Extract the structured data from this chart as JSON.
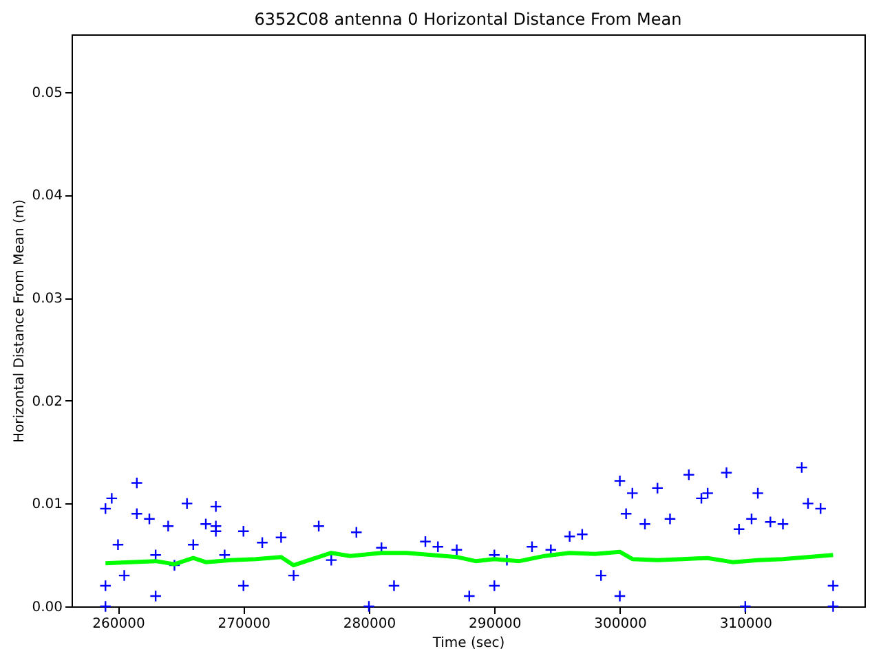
{
  "chart_data": {
    "type": "scatter",
    "title": "6352C08 antenna 0 Horizontal Distance From Mean",
    "xlabel": "Time (sec)",
    "ylabel": "Horizontal Distance From Mean (m)",
    "xlim": [
      256300,
      319500
    ],
    "xticks": [
      260000,
      270000,
      280000,
      290000,
      300000,
      310000
    ],
    "ylim": [
      0,
      0.0556
    ],
    "yticks": [
      {
        "value": 0,
        "label": "0.00"
      },
      {
        "value": 0.01,
        "label": "0.01"
      },
      {
        "value": 0.02,
        "label": "0.02"
      },
      {
        "value": 0.03,
        "label": "0.03"
      },
      {
        "value": 0.04,
        "label": "0.04"
      },
      {
        "value": 0.05,
        "label": "0.05"
      }
    ],
    "grid": false,
    "series": [
      {
        "color": "#0000ff",
        "marker": "cross",
        "x": [
          259000,
          259000,
          259000,
          259500,
          260000,
          260500,
          261500,
          261500,
          262500,
          263000,
          263000,
          264000,
          264500,
          265500,
          266000,
          267000,
          267800,
          267800,
          267800,
          268500,
          270000,
          270000,
          271500,
          273000,
          274000,
          276000,
          277000,
          279000,
          280000,
          281000,
          282000,
          284500,
          285500,
          287000,
          288000,
          290000,
          290000,
          291000,
          293000,
          294500,
          296000,
          297000,
          298500,
          300000,
          300000,
          300500,
          301000,
          302000,
          303000,
          304000,
          305500,
          306500,
          307000,
          308500,
          309500,
          310000,
          310500,
          311000,
          312000,
          313000,
          314500,
          315000,
          316000,
          317000,
          317000
        ],
        "values": [
          0.0095,
          0.002,
          0.0,
          0.0105,
          0.006,
          0.003,
          0.012,
          0.009,
          0.0085,
          0.005,
          0.001,
          0.0078,
          0.004,
          0.01,
          0.006,
          0.008,
          0.0097,
          0.0078,
          0.0073,
          0.005,
          0.0073,
          0.002,
          0.0062,
          0.0067,
          0.003,
          0.0078,
          0.0045,
          0.0072,
          0.0,
          0.0057,
          0.002,
          0.0063,
          0.0058,
          0.0055,
          0.001,
          0.005,
          0.002,
          0.0045,
          0.0058,
          0.0055,
          0.0068,
          0.007,
          0.003,
          0.0122,
          0.001,
          0.009,
          0.011,
          0.008,
          0.0115,
          0.0085,
          0.0128,
          0.0105,
          0.011,
          0.013,
          0.0075,
          0.0,
          0.0085,
          0.011,
          0.0082,
          0.008,
          0.0135,
          0.01,
          0.0095,
          0.002,
          0.0
        ]
      },
      {
        "type": "line",
        "color": "#00ff00",
        "marker": "none",
        "line_style": "solid",
        "x": [
          259000,
          261000,
          263000,
          264500,
          266000,
          267000,
          269000,
          271000,
          273000,
          274000,
          275500,
          277000,
          278500,
          281000,
          283000,
          285000,
          287000,
          288500,
          290000,
          292000,
          294000,
          296000,
          298000,
          300000,
          301000,
          303000,
          305000,
          307000,
          309000,
          311000,
          313000,
          315000,
          317000
        ],
        "values": [
          0.0042,
          0.0043,
          0.0044,
          0.0041,
          0.0047,
          0.0043,
          0.0045,
          0.0046,
          0.0048,
          0.004,
          0.0046,
          0.0052,
          0.0049,
          0.0052,
          0.0052,
          0.005,
          0.0048,
          0.0044,
          0.0046,
          0.0044,
          0.0049,
          0.0052,
          0.0051,
          0.0053,
          0.0046,
          0.0045,
          0.0046,
          0.0047,
          0.0043,
          0.0045,
          0.0046,
          0.0048,
          0.005
        ]
      }
    ]
  }
}
